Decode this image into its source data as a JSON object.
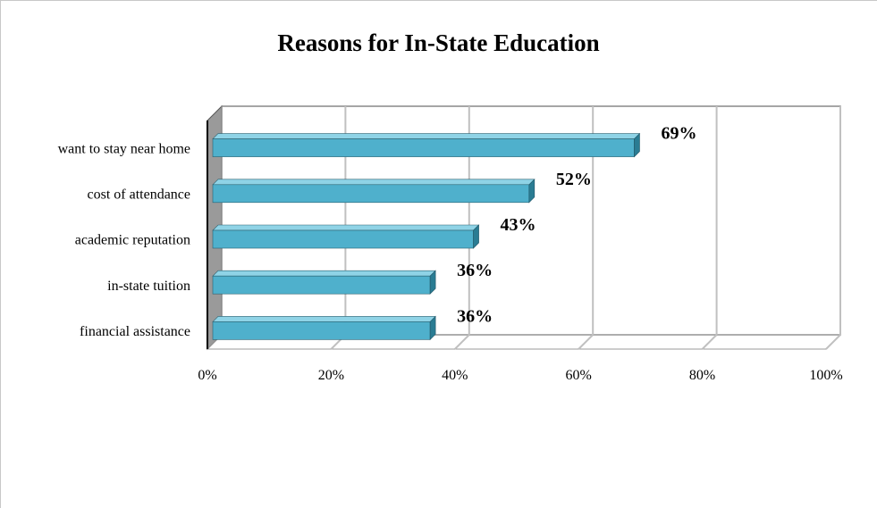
{
  "chart_data": {
    "type": "bar",
    "orientation": "horizontal",
    "title": "Reasons for In-State Education",
    "categories": [
      "want to stay near home",
      "cost of attendance",
      "academic reputation",
      "in-state tuition",
      "financial assistance"
    ],
    "values": [
      69,
      52,
      43,
      36,
      36
    ],
    "data_labels": [
      "69%",
      "52%",
      "43%",
      "36%",
      "36%"
    ],
    "xlim": [
      0,
      100
    ],
    "x_ticks": [
      "0%",
      "20%",
      "40%",
      "60%",
      "80%",
      "100%"
    ],
    "xlabel": "",
    "ylabel": "",
    "grid": true,
    "style": "3d",
    "colors": {
      "bar_front": "#4fb0cc",
      "bar_top": "#8fd3e6",
      "bar_side": "#2a7c93",
      "grid": "#c0c0c0",
      "wall": "#9a9a9a"
    }
  }
}
